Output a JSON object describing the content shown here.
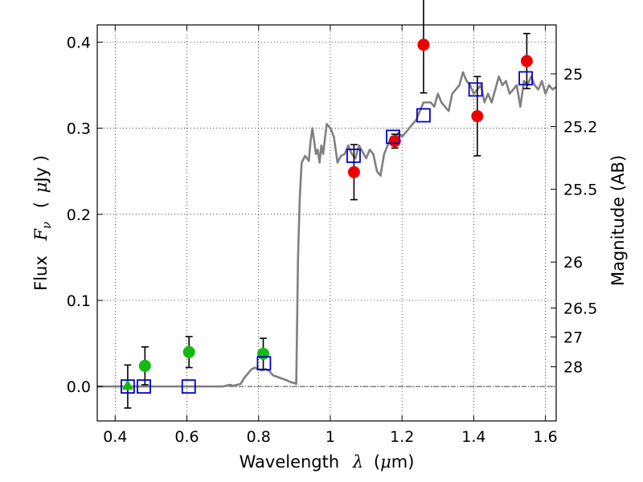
{
  "chart_data": {
    "type": "scatter",
    "xlabel": {
      "text": "Wavelength",
      "symbol": "λ",
      "unit_open": "(",
      "unit_mu": "μ",
      "unit_rest": "m)"
    },
    "ylabel": {
      "text": "Flux",
      "symbol": "F",
      "sub": "ν",
      "unit_open": "(",
      "unit_mu": "μ",
      "unit_rest": "Jy )"
    },
    "ylabel_right": "Magnitude (AB)",
    "xlim": [
      0.35,
      1.63
    ],
    "ylim": [
      -0.04,
      0.42
    ],
    "grid": true,
    "xticks": [
      {
        "v": 0.4,
        "label": "0.4"
      },
      {
        "v": 0.6,
        "label": "0.6"
      },
      {
        "v": 0.8,
        "label": "0.8"
      },
      {
        "v": 1.0,
        "label": "1"
      },
      {
        "v": 1.2,
        "label": "1.2"
      },
      {
        "v": 1.4,
        "label": "1.4"
      },
      {
        "v": 1.6,
        "label": "1.6"
      }
    ],
    "yticks": [
      {
        "v": 0.0,
        "label": "0.0"
      },
      {
        "v": 0.1,
        "label": "0.1"
      },
      {
        "v": 0.2,
        "label": "0.2"
      },
      {
        "v": 0.3,
        "label": "0.3"
      },
      {
        "v": 0.4,
        "label": "0.4"
      }
    ],
    "mag_ticks": [
      {
        "mag": 25,
        "label": "25"
      },
      {
        "mag": 25.2,
        "label": "25.2"
      },
      {
        "mag": 25.5,
        "label": "25.5"
      },
      {
        "mag": 26,
        "label": "26"
      },
      {
        "mag": 26.5,
        "label": "26.5"
      },
      {
        "mag": 27,
        "label": "27"
      },
      {
        "mag": 28,
        "label": "28"
      }
    ],
    "colors": {
      "model": "#808080",
      "model_photometry": "#0000cc",
      "optical": "#11bb11",
      "nir": "#ee0000",
      "errorbar": "#000000",
      "zero_line": "#404040"
    },
    "model_spectrum": {
      "x": [
        0.35,
        0.5,
        0.6,
        0.7,
        0.72,
        0.73,
        0.75,
        0.76,
        0.77,
        0.78,
        0.79,
        0.8,
        0.81,
        0.82,
        0.83,
        0.84,
        0.86,
        0.88,
        0.89,
        0.9,
        0.905,
        0.91,
        0.915,
        0.92,
        0.93,
        0.94,
        0.945,
        0.95,
        0.96,
        0.965,
        0.97,
        0.975,
        0.98,
        0.99,
        1.0,
        1.01,
        1.02,
        1.03,
        1.04,
        1.05,
        1.06,
        1.07,
        1.08,
        1.1,
        1.11,
        1.12,
        1.13,
        1.14,
        1.15,
        1.16,
        1.17,
        1.18,
        1.19,
        1.2,
        1.22,
        1.24,
        1.25,
        1.26,
        1.27,
        1.28,
        1.29,
        1.3,
        1.31,
        1.32,
        1.33,
        1.34,
        1.35,
        1.36,
        1.37,
        1.38,
        1.39,
        1.4,
        1.41,
        1.42,
        1.43,
        1.44,
        1.45,
        1.46,
        1.47,
        1.48,
        1.49,
        1.5,
        1.51,
        1.52,
        1.53,
        1.54,
        1.55,
        1.56,
        1.57,
        1.58,
        1.59,
        1.6,
        1.61,
        1.62,
        1.63
      ],
      "y": [
        0.0,
        0.0,
        0.0,
        0.0,
        0.002,
        0.001,
        0.003,
        0.01,
        0.015,
        0.02,
        0.022,
        0.02,
        0.019,
        0.02,
        0.018,
        0.013,
        0.01,
        0.007,
        0.005,
        0.004,
        0.003,
        0.15,
        0.22,
        0.26,
        0.268,
        0.262,
        0.285,
        0.3,
        0.27,
        0.275,
        0.26,
        0.28,
        0.27,
        0.305,
        0.3,
        0.29,
        0.26,
        0.268,
        0.27,
        0.28,
        0.27,
        0.265,
        0.28,
        0.265,
        0.275,
        0.27,
        0.25,
        0.245,
        0.27,
        0.28,
        0.29,
        0.285,
        0.295,
        0.29,
        0.3,
        0.31,
        0.32,
        0.33,
        0.33,
        0.33,
        0.325,
        0.34,
        0.33,
        0.325,
        0.32,
        0.34,
        0.345,
        0.35,
        0.365,
        0.355,
        0.35,
        0.34,
        0.345,
        0.35,
        0.33,
        0.34,
        0.33,
        0.345,
        0.36,
        0.35,
        0.355,
        0.34,
        0.345,
        0.35,
        0.325,
        0.355,
        0.35,
        0.36,
        0.35,
        0.345,
        0.355,
        0.34,
        0.35,
        0.345,
        0.348
      ]
    },
    "model_photometry": {
      "x": [
        0.435,
        0.48,
        0.605,
        0.815,
        1.065,
        1.175,
        1.26,
        1.405,
        1.545
      ],
      "y": [
        0.0,
        0.0,
        0.0,
        0.027,
        0.268,
        0.29,
        0.315,
        0.345,
        0.358
      ]
    },
    "optical_detections": {
      "x": [
        0.483,
        0.606,
        0.813
      ],
      "y": [
        0.024,
        0.04,
        0.038
      ],
      "err": [
        0.022,
        0.018,
        0.018
      ]
    },
    "optical_upper_limit": {
      "x": 0.435,
      "y": 0.0,
      "err": 0.025
    },
    "nir_detections": {
      "x": [
        1.066,
        1.18,
        1.26,
        1.41,
        1.548
      ],
      "y": [
        0.249,
        0.285,
        0.397,
        0.314,
        0.378
      ],
      "err": [
        0.032,
        0.008,
        0.056,
        0.046,
        0.032
      ]
    }
  }
}
